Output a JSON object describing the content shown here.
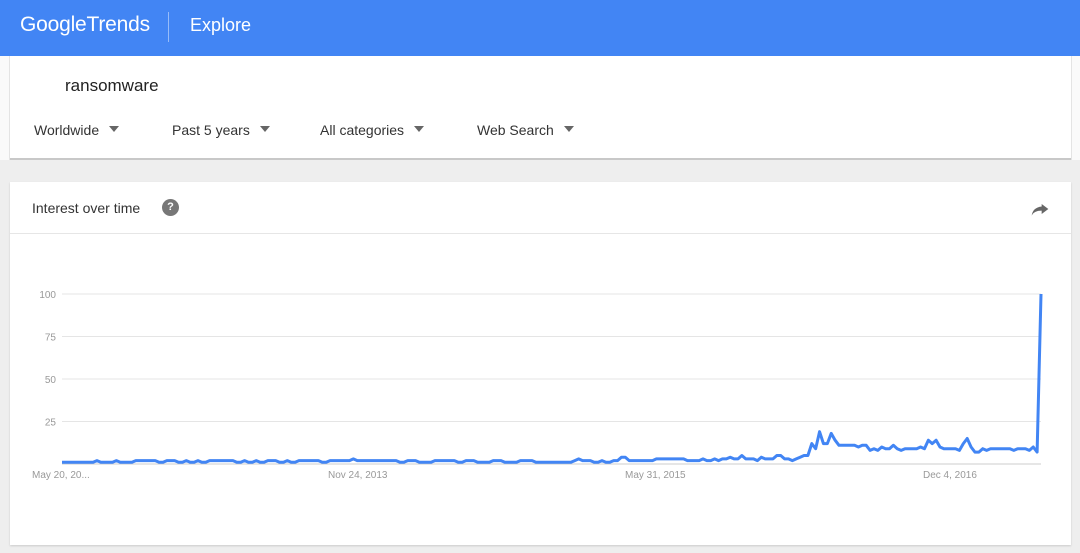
{
  "topbar": {
    "logo_text_1": "Google",
    "logo_text_2": "Trends",
    "section": "Explore"
  },
  "search": {
    "term": "ransomware",
    "filters": [
      "Worldwide",
      "Past 5 years",
      "All categories",
      "Web Search"
    ]
  },
  "card": {
    "title": "Interest over time",
    "help_icon": "help-icon",
    "share_icon": "share-icon"
  },
  "colors": {
    "brand": "#4285f4",
    "line": "#4285f4"
  },
  "chart_data": {
    "type": "line",
    "title": "",
    "xlabel": "",
    "ylabel": "",
    "ylim": [
      0,
      100
    ],
    "yticks": [
      25,
      50,
      75,
      100
    ],
    "xticks": [
      "May 20, 20...",
      "Nov 24, 2013",
      "May 31, 2015",
      "Dec 4, 2016"
    ],
    "series": [
      {
        "values": [
          1,
          1,
          1,
          1,
          1,
          1,
          1,
          1,
          1,
          2,
          1,
          1,
          1,
          1,
          2,
          1,
          1,
          1,
          1,
          2,
          2,
          2,
          2,
          2,
          2,
          1,
          1,
          2,
          2,
          2,
          1,
          1,
          2,
          1,
          1,
          2,
          1,
          1,
          2,
          2,
          2,
          2,
          2,
          2,
          2,
          1,
          1,
          2,
          1,
          1,
          2,
          1,
          1,
          2,
          2,
          2,
          1,
          1,
          2,
          1,
          1,
          2,
          2,
          2,
          2,
          2,
          2,
          1,
          1,
          2,
          2,
          2,
          2,
          2,
          2,
          3,
          2,
          2,
          2,
          2,
          2,
          2,
          2,
          2,
          2,
          2,
          2,
          1,
          1,
          2,
          2,
          2,
          1,
          1,
          1,
          1,
          2,
          2,
          2,
          2,
          2,
          2,
          1,
          1,
          2,
          2,
          2,
          1,
          1,
          1,
          1,
          2,
          2,
          2,
          1,
          1,
          1,
          1,
          2,
          2,
          2,
          2,
          1,
          1,
          1,
          1,
          1,
          1,
          1,
          1,
          1,
          1,
          2,
          3,
          2,
          2,
          2,
          1,
          1,
          2,
          1,
          1,
          2,
          2,
          4,
          4,
          2,
          2,
          2,
          2,
          2,
          2,
          2,
          3,
          3,
          3,
          3,
          3,
          3,
          3,
          3,
          2,
          2,
          2,
          2,
          3,
          2,
          2,
          3,
          2,
          3,
          3,
          4,
          3,
          3,
          5,
          3,
          3,
          3,
          2,
          4,
          3,
          3,
          3,
          5,
          5,
          3,
          3,
          2,
          3,
          4,
          5,
          5,
          12,
          9,
          19,
          12,
          12,
          18,
          14,
          11,
          11,
          11,
          11,
          11,
          10,
          11,
          11,
          8,
          9,
          8,
          10,
          9,
          9,
          11,
          9,
          8,
          9,
          9,
          9,
          9,
          10,
          9,
          14,
          12,
          14,
          10,
          9,
          9,
          9,
          9,
          8,
          12,
          15,
          10,
          7,
          7,
          9,
          8,
          9,
          9,
          9,
          9,
          9,
          9,
          8,
          9,
          9,
          9,
          8,
          10,
          7,
          100
        ]
      }
    ]
  }
}
